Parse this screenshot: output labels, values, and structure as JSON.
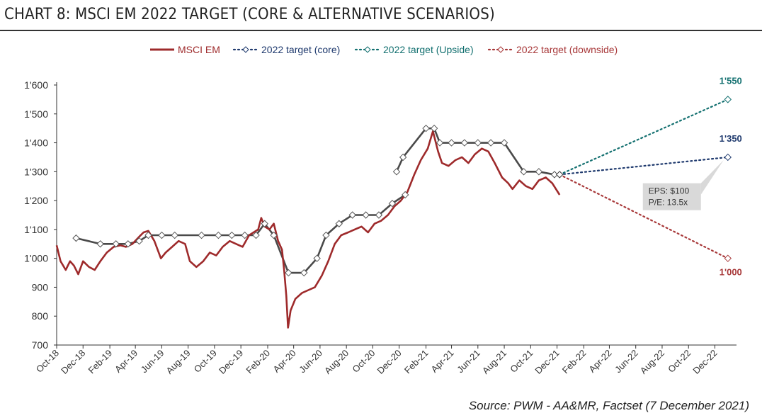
{
  "title": "CHART 8: MSCI EM 2022 TARGET (CORE & ALTERNATIVE SCENARIOS)",
  "source": "Source: PWM - AA&MR, Factset (7 December 2021)",
  "colors": {
    "msci": "#9e2a2b",
    "core": "#1f3a6e",
    "upside": "#137070",
    "downside": "#a8393a",
    "consensus": "#4a4a4a",
    "axis": "#333333"
  },
  "legend": {
    "msci": "MSCI EM",
    "core": "2022 target (core)",
    "upside": "2022 target (Upside)",
    "downside": "2022 target (downside)"
  },
  "annotation": {
    "line1": "EPS: $100",
    "line2": "P/E: 13.5x"
  },
  "chart_data": {
    "type": "line",
    "title": "CHART 8: MSCI EM 2022 TARGET (CORE & ALTERNATIVE SCENARIOS)",
    "x_axis_type": "month",
    "xlim": [
      "2018-10",
      "2023-01"
    ],
    "x_tick_labels": [
      "Oct-18",
      "Dec-18",
      "Feb-19",
      "Apr-19",
      "Jun-19",
      "Aug-19",
      "Oct-19",
      "Dec-19",
      "Feb-20",
      "Apr-20",
      "Jun-20",
      "Aug-20",
      "Oct-20",
      "Dec-20",
      "Feb-21",
      "Apr-21",
      "Jun-21",
      "Aug-21",
      "Oct-21",
      "Dec-21",
      "Feb-22",
      "Apr-22",
      "Jun-22",
      "Aug-22",
      "Oct-22",
      "Dec-22"
    ],
    "ylim": [
      700,
      1600
    ],
    "y_ticks": [
      700,
      800,
      900,
      1000,
      1100,
      1200,
      1300,
      1400,
      1500,
      1600
    ],
    "y_tick_labels": [
      "700",
      "800",
      "900",
      "1'000",
      "1'100",
      "1'200",
      "1'300",
      "1'400",
      "1'500",
      "1'600"
    ],
    "grid": false,
    "legend_position": "top",
    "series": [
      {
        "name": "MSCI EM",
        "style": "solid",
        "points": [
          [
            "2018-10-01",
            1045
          ],
          [
            "2018-10-10",
            990
          ],
          [
            "2018-10-22",
            960
          ],
          [
            "2018-11-01",
            990
          ],
          [
            "2018-11-10",
            975
          ],
          [
            "2018-11-20",
            945
          ],
          [
            "2018-12-01",
            990
          ],
          [
            "2018-12-15",
            970
          ],
          [
            "2018-12-28",
            960
          ],
          [
            "2019-01-10",
            990
          ],
          [
            "2019-01-25",
            1020
          ],
          [
            "2019-02-10",
            1040
          ],
          [
            "2019-02-25",
            1045
          ],
          [
            "2019-03-10",
            1040
          ],
          [
            "2019-03-25",
            1050
          ],
          [
            "2019-04-10",
            1075
          ],
          [
            "2019-04-20",
            1090
          ],
          [
            "2019-05-01",
            1095
          ],
          [
            "2019-05-15",
            1060
          ],
          [
            "2019-05-30",
            1000
          ],
          [
            "2019-06-10",
            1020
          ],
          [
            "2019-06-25",
            1040
          ],
          [
            "2019-07-10",
            1060
          ],
          [
            "2019-07-25",
            1050
          ],
          [
            "2019-08-05",
            990
          ],
          [
            "2019-08-20",
            970
          ],
          [
            "2019-09-05",
            990
          ],
          [
            "2019-09-20",
            1020
          ],
          [
            "2019-10-05",
            1010
          ],
          [
            "2019-10-20",
            1040
          ],
          [
            "2019-11-05",
            1060
          ],
          [
            "2019-11-20",
            1050
          ],
          [
            "2019-12-05",
            1040
          ],
          [
            "2019-12-20",
            1080
          ],
          [
            "2020-01-10",
            1100
          ],
          [
            "2020-01-17",
            1140
          ],
          [
            "2020-01-25",
            1110
          ],
          [
            "2020-02-05",
            1100
          ],
          [
            "2020-02-15",
            1120
          ],
          [
            "2020-02-25",
            1060
          ],
          [
            "2020-03-05",
            1030
          ],
          [
            "2020-03-10",
            960
          ],
          [
            "2020-03-15",
            870
          ],
          [
            "2020-03-19",
            760
          ],
          [
            "2020-03-25",
            820
          ],
          [
            "2020-04-05",
            860
          ],
          [
            "2020-04-20",
            880
          ],
          [
            "2020-05-05",
            890
          ],
          [
            "2020-05-20",
            900
          ],
          [
            "2020-06-05",
            940
          ],
          [
            "2020-06-20",
            990
          ],
          [
            "2020-07-05",
            1050
          ],
          [
            "2020-07-20",
            1080
          ],
          [
            "2020-08-05",
            1090
          ],
          [
            "2020-08-20",
            1100
          ],
          [
            "2020-09-05",
            1110
          ],
          [
            "2020-09-20",
            1090
          ],
          [
            "2020-10-05",
            1120
          ],
          [
            "2020-10-20",
            1130
          ],
          [
            "2020-11-05",
            1150
          ],
          [
            "2020-11-20",
            1180
          ],
          [
            "2020-12-05",
            1200
          ],
          [
            "2020-12-20",
            1230
          ],
          [
            "2021-01-05",
            1290
          ],
          [
            "2021-01-20",
            1340
          ],
          [
            "2021-02-05",
            1380
          ],
          [
            "2021-02-17",
            1440
          ],
          [
            "2021-03-01",
            1370
          ],
          [
            "2021-03-10",
            1330
          ],
          [
            "2021-03-25",
            1320
          ],
          [
            "2021-04-10",
            1340
          ],
          [
            "2021-04-25",
            1350
          ],
          [
            "2021-05-10",
            1330
          ],
          [
            "2021-05-25",
            1360
          ],
          [
            "2021-06-10",
            1380
          ],
          [
            "2021-06-25",
            1370
          ],
          [
            "2021-07-10",
            1330
          ],
          [
            "2021-07-27",
            1280
          ],
          [
            "2021-08-10",
            1260
          ],
          [
            "2021-08-20",
            1240
          ],
          [
            "2021-09-05",
            1270
          ],
          [
            "2021-09-20",
            1250
          ],
          [
            "2021-10-05",
            1240
          ],
          [
            "2021-10-20",
            1270
          ],
          [
            "2021-11-05",
            1280
          ],
          [
            "2021-11-20",
            1260
          ],
          [
            "2021-12-07",
            1220
          ]
        ]
      },
      {
        "name": "",
        "style": "solid-markers",
        "segments": [
          [
            [
              "2018-11-15",
              1070
            ],
            [
              "2019-01-10",
              1050
            ],
            [
              "2019-02-15",
              1050
            ],
            [
              "2019-03-15",
              1050
            ],
            [
              "2019-04-10",
              1060
            ],
            [
              "2019-05-01",
              1080
            ],
            [
              "2019-06-01",
              1080
            ],
            [
              "2019-07-01",
              1080
            ],
            [
              "2019-09-01",
              1080
            ],
            [
              "2019-10-10",
              1080
            ],
            [
              "2019-11-10",
              1080
            ],
            [
              "2019-12-10",
              1080
            ],
            [
              "2020-01-05",
              1080
            ],
            [
              "2020-01-25",
              1120
            ],
            [
              "2020-02-15",
              1080
            ],
            [
              "2020-03-20",
              950
            ],
            [
              "2020-04-25",
              950
            ],
            [
              "2020-05-25",
              1000
            ],
            [
              "2020-06-15",
              1080
            ],
            [
              "2020-07-15",
              1120
            ],
            [
              "2020-08-15",
              1150
            ],
            [
              "2020-09-15",
              1150
            ],
            [
              "2020-10-15",
              1150
            ],
            [
              "2020-11-15",
              1190
            ],
            [
              "2020-12-15",
              1220
            ]
          ],
          [
            [
              "2020-11-25",
              1300
            ],
            [
              "2020-12-10",
              1350
            ],
            [
              "2021-02-01",
              1450
            ],
            [
              "2021-02-20",
              1450
            ],
            [
              "2021-03-05",
              1400
            ],
            [
              "2021-04-01",
              1400
            ],
            [
              "2021-05-01",
              1400
            ],
            [
              "2021-06-01",
              1400
            ],
            [
              "2021-07-01",
              1400
            ],
            [
              "2021-08-01",
              1400
            ],
            [
              "2021-09-15",
              1300
            ],
            [
              "2021-10-20",
              1300
            ],
            [
              "2021-11-25",
              1290
            ],
            [
              "2021-12-07",
              1290
            ]
          ]
        ]
      },
      {
        "name": "2022 target (core)",
        "style": "dotted",
        "points": [
          [
            "2021-12-07",
            1290
          ],
          [
            "2022-12-31",
            1350
          ]
        ]
      },
      {
        "name": "2022 target (Upside)",
        "style": "dotted",
        "points": [
          [
            "2021-12-07",
            1290
          ],
          [
            "2022-12-31",
            1550
          ]
        ]
      },
      {
        "name": "2022 target (downside)",
        "style": "dotted",
        "points": [
          [
            "2021-12-07",
            1290
          ],
          [
            "2022-12-31",
            1000
          ]
        ]
      }
    ],
    "data_labels": [
      {
        "series": "2022 target (Upside)",
        "text": "1'550",
        "value": 1550
      },
      {
        "series": "2022 target (core)",
        "text": "1'350",
        "value": 1350
      },
      {
        "series": "2022 target (downside)",
        "text": "1'000",
        "value": 1000
      }
    ]
  }
}
